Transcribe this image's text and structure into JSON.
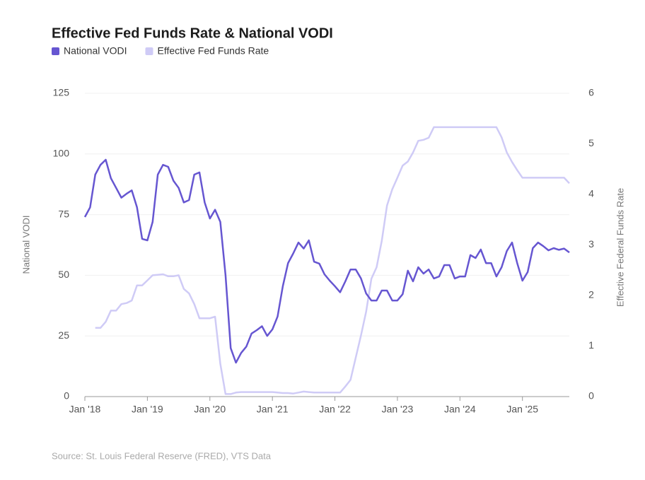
{
  "chart_data": {
    "type": "line",
    "title": "Effective Fed Funds Rate & National VODI",
    "source": "Source: St. Louis Federal Reserve (FRED), VTS Data",
    "y_label": "National VODI",
    "y2_label": "Effective Federal Funds Rate",
    "x": [
      "2018-01",
      "2018-02",
      "2018-03",
      "2018-04",
      "2018-05",
      "2018-06",
      "2018-07",
      "2018-08",
      "2018-09",
      "2018-10",
      "2018-11",
      "2018-12",
      "2019-01",
      "2019-02",
      "2019-03",
      "2019-04",
      "2019-05",
      "2019-06",
      "2019-07",
      "2019-08",
      "2019-09",
      "2019-10",
      "2019-11",
      "2019-12",
      "2020-01",
      "2020-02",
      "2020-03",
      "2020-04",
      "2020-05",
      "2020-06",
      "2020-07",
      "2020-08",
      "2020-09",
      "2020-10",
      "2020-11",
      "2020-12",
      "2021-01",
      "2021-02",
      "2021-03",
      "2021-04",
      "2021-05",
      "2021-06",
      "2021-07",
      "2021-08",
      "2021-09",
      "2021-10",
      "2021-11",
      "2021-12",
      "2022-01",
      "2022-02",
      "2022-03",
      "2022-04",
      "2022-05",
      "2022-06",
      "2022-07",
      "2022-08",
      "2022-09",
      "2022-10",
      "2022-11",
      "2022-12",
      "2023-01",
      "2023-02",
      "2023-03",
      "2023-04",
      "2023-05",
      "2023-06",
      "2023-07",
      "2023-08",
      "2023-09",
      "2023-10",
      "2023-11",
      "2023-12",
      "2024-01",
      "2024-02",
      "2024-03",
      "2024-04",
      "2024-05",
      "2024-06",
      "2024-07",
      "2024-08",
      "2024-09",
      "2024-10",
      "2024-11",
      "2024-12",
      "2025-01",
      "2025-02",
      "2025-03",
      "2025-04",
      "2025-05",
      "2025-06",
      "2025-07",
      "2025-08",
      "2025-09",
      "2025-10"
    ],
    "series": [
      {
        "name": "National VODI",
        "color": "#6656d1",
        "values": [
          74,
          78,
          91.5,
          95.5,
          97.6,
          90,
          86,
          82,
          83.6,
          85,
          78,
          65,
          64.4,
          72,
          91.5,
          95.5,
          94.7,
          89,
          86,
          80,
          81,
          91.5,
          92.4,
          80,
          73.4,
          77,
          72,
          50,
          20,
          14,
          18,
          20.6,
          26,
          27.4,
          29,
          25,
          27.7,
          33,
          45.5,
          55,
          59,
          63.5,
          61,
          64.4,
          55.6,
          54.8,
          50.4,
          47.8,
          45.5,
          43,
          47.5,
          52.4,
          52.4,
          48.7,
          42.5,
          39.6,
          39.6,
          43.7,
          43.7,
          39.6,
          39.6,
          42.2,
          51.9,
          47.5,
          53.3,
          50.7,
          52.4,
          48.7,
          49.5,
          54.2,
          54.2,
          48.7,
          49.5,
          49.5,
          58.3,
          57.1,
          60.6,
          55,
          55,
          49.5,
          53.3,
          60,
          63.5,
          55,
          47.8,
          51.3,
          61.2,
          63.5,
          62,
          60.3,
          61.2,
          60.5,
          61,
          59.4
        ]
      },
      {
        "name": "Effective Fed Funds Rate",
        "color": "#cfcbf6",
        "axis": "y2",
        "values": [
          null,
          null,
          1.36,
          1.36,
          1.48,
          1.7,
          1.7,
          1.83,
          1.85,
          1.9,
          2.2,
          2.2,
          2.3,
          2.4,
          2.41,
          2.42,
          2.38,
          2.38,
          2.4,
          2.13,
          2.04,
          1.83,
          1.55,
          1.55,
          1.55,
          1.58,
          0.65,
          0.05,
          0.05,
          0.08,
          0.09,
          0.09,
          0.09,
          0.09,
          0.09,
          0.09,
          0.09,
          0.08,
          0.07,
          0.07,
          0.06,
          0.08,
          0.1,
          0.09,
          0.08,
          0.08,
          0.08,
          0.08,
          0.08,
          0.08,
          0.2,
          0.33,
          0.77,
          1.21,
          1.68,
          2.33,
          2.56,
          3.08,
          3.78,
          4.1,
          4.33,
          4.57,
          4.65,
          4.83,
          5.06,
          5.08,
          5.12,
          5.33,
          5.33,
          5.33,
          5.33,
          5.33,
          5.33,
          5.33,
          5.33,
          5.33,
          5.33,
          5.33,
          5.33,
          5.33,
          5.13,
          4.83,
          4.64,
          4.48,
          4.33,
          4.33,
          4.33,
          4.33,
          4.33,
          4.33,
          4.33,
          4.33,
          4.33,
          4.22
        ]
      }
    ],
    "xlim": [
      "2018-01",
      "2025-10"
    ],
    "xticks": [
      {
        "value": "2018-01",
        "label": "Jan '18"
      },
      {
        "value": "2019-01",
        "label": "Jan '19"
      },
      {
        "value": "2020-01",
        "label": "Jan '20"
      },
      {
        "value": "2021-01",
        "label": "Jan '21"
      },
      {
        "value": "2022-01",
        "label": "Jan '22"
      },
      {
        "value": "2023-01",
        "label": "Jan '23"
      },
      {
        "value": "2024-01",
        "label": "Jan '24"
      },
      {
        "value": "2025-01",
        "label": "Jan '25"
      }
    ],
    "ylim": [
      0,
      125
    ],
    "yticks": [
      0,
      25,
      50,
      75,
      100,
      125
    ],
    "y2lim": [
      0,
      6
    ],
    "y2ticks": [
      0,
      1,
      2,
      3,
      4,
      5,
      6
    ],
    "grid": true
  }
}
